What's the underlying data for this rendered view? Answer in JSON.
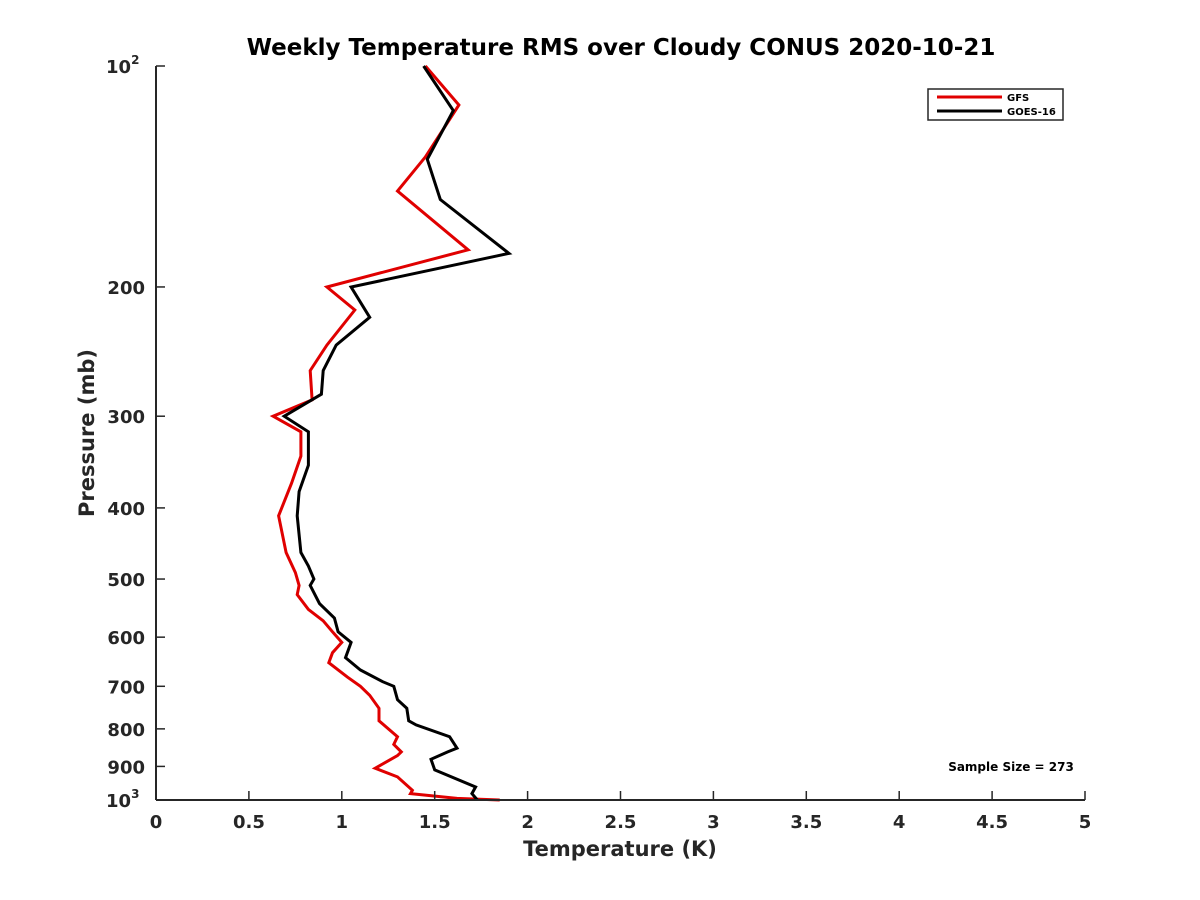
{
  "chart_data": {
    "type": "line",
    "title": "Weekly Temperature RMS over Cloudy CONUS 2020-10-21",
    "xlabel": "Temperature (K)",
    "ylabel": "Pressure (mb)",
    "xlim": [
      0,
      5
    ],
    "ylim": [
      100,
      1000
    ],
    "y_scale": "log",
    "y_reversed": true,
    "grid": false,
    "legend_position": "top-right",
    "x_ticks": [
      "0",
      "0.5",
      "1",
      "1.5",
      "2",
      "2.5",
      "3",
      "3.5",
      "4",
      "4.5",
      "5"
    ],
    "y_ticks": [
      {
        "value": 100,
        "base": "10",
        "exp": "2"
      },
      {
        "value": 200,
        "base": "200",
        "exp": ""
      },
      {
        "value": 300,
        "base": "300",
        "exp": ""
      },
      {
        "value": 400,
        "base": "400",
        "exp": ""
      },
      {
        "value": 500,
        "base": "500",
        "exp": ""
      },
      {
        "value": 600,
        "base": "600",
        "exp": ""
      },
      {
        "value": 700,
        "base": "700",
        "exp": ""
      },
      {
        "value": 800,
        "base": "800",
        "exp": ""
      },
      {
        "value": 900,
        "base": "900",
        "exp": ""
      },
      {
        "value": 1000,
        "base": "10",
        "exp": "3"
      }
    ],
    "series": [
      {
        "name": "GFS",
        "color": "#e00000",
        "points": [
          [
            1.45,
            100
          ],
          [
            1.63,
            113
          ],
          [
            1.45,
            133
          ],
          [
            1.3,
            148
          ],
          [
            1.68,
            178
          ],
          [
            0.92,
            200
          ],
          [
            1.07,
            215
          ],
          [
            0.92,
            240
          ],
          [
            0.83,
            260
          ],
          [
            0.84,
            285
          ],
          [
            0.63,
            300
          ],
          [
            0.78,
            315
          ],
          [
            0.78,
            340
          ],
          [
            0.73,
            370
          ],
          [
            0.66,
            410
          ],
          [
            0.7,
            460
          ],
          [
            0.75,
            490
          ],
          [
            0.77,
            510
          ],
          [
            0.76,
            525
          ],
          [
            0.82,
            550
          ],
          [
            0.9,
            570
          ],
          [
            0.95,
            590
          ],
          [
            1.0,
            610
          ],
          [
            0.95,
            630
          ],
          [
            0.93,
            650
          ],
          [
            1.03,
            680
          ],
          [
            1.1,
            700
          ],
          [
            1.15,
            720
          ],
          [
            1.2,
            750
          ],
          [
            1.2,
            780
          ],
          [
            1.3,
            820
          ],
          [
            1.28,
            840
          ],
          [
            1.32,
            860
          ],
          [
            1.3,
            870
          ],
          [
            1.18,
            905
          ],
          [
            1.3,
            930
          ],
          [
            1.38,
            970
          ],
          [
            1.37,
            980
          ],
          [
            1.62,
            995
          ],
          [
            1.85,
            1000
          ]
        ]
      },
      {
        "name": "GOES-16",
        "color": "#000000",
        "points": [
          [
            1.44,
            100
          ],
          [
            1.6,
            115
          ],
          [
            1.46,
            134
          ],
          [
            1.53,
            152
          ],
          [
            1.9,
            180
          ],
          [
            1.05,
            200
          ],
          [
            1.15,
            220
          ],
          [
            0.97,
            240
          ],
          [
            0.9,
            260
          ],
          [
            0.89,
            280
          ],
          [
            0.69,
            300
          ],
          [
            0.82,
            315
          ],
          [
            0.82,
            350
          ],
          [
            0.77,
            380
          ],
          [
            0.76,
            410
          ],
          [
            0.78,
            460
          ],
          [
            0.82,
            480
          ],
          [
            0.85,
            500
          ],
          [
            0.83,
            510
          ],
          [
            0.88,
            540
          ],
          [
            0.96,
            565
          ],
          [
            0.98,
            590
          ],
          [
            1.05,
            610
          ],
          [
            1.02,
            640
          ],
          [
            1.1,
            665
          ],
          [
            1.22,
            690
          ],
          [
            1.28,
            700
          ],
          [
            1.3,
            730
          ],
          [
            1.35,
            750
          ],
          [
            1.36,
            780
          ],
          [
            1.4,
            790
          ],
          [
            1.58,
            820
          ],
          [
            1.62,
            850
          ],
          [
            1.57,
            860
          ],
          [
            1.48,
            880
          ],
          [
            1.5,
            910
          ],
          [
            1.72,
            960
          ],
          [
            1.7,
            980
          ],
          [
            1.73,
            1000
          ]
        ]
      }
    ],
    "annotation": "Sample Size = 273"
  }
}
